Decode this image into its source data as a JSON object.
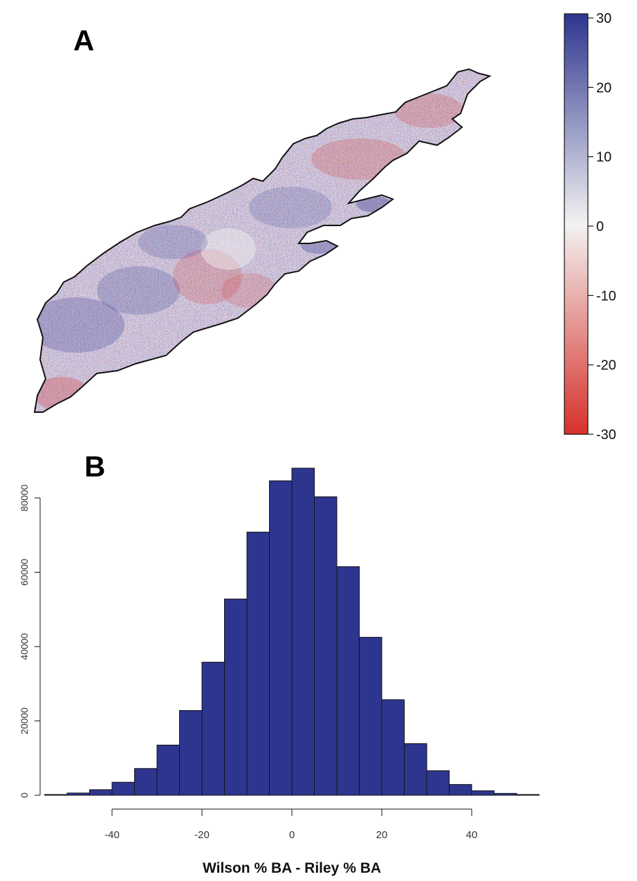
{
  "panels": {
    "a_label": "A",
    "b_label": "B"
  },
  "chart_data": [
    {
      "type": "heatmap",
      "panel": "A",
      "title": "",
      "description_values": "spatial map of Wilson % BA minus Riley % BA",
      "colorbar": {
        "min": -30,
        "max": 30,
        "ticks": [
          30,
          20,
          10,
          0,
          -10,
          -20,
          -30
        ],
        "tick_labels": [
          "30",
          "20",
          "10",
          "0",
          "-10",
          "-20",
          "-30"
        ],
        "colors": {
          "high": "#2e358f",
          "mid": "#f2f2f2",
          "low": "#d7302a"
        }
      }
    },
    {
      "type": "bar",
      "panel": "B",
      "title": "",
      "xlabel": "Wilson % BA - Riley % BA",
      "ylabel": "",
      "bin_edges": [
        -55,
        -50,
        -45,
        -40,
        -35,
        -30,
        -25,
        -20,
        -15,
        -10,
        -5,
        0,
        5,
        10,
        15,
        20,
        25,
        30,
        35,
        40,
        45,
        50,
        55
      ],
      "values": [
        200,
        600,
        1500,
        3500,
        7200,
        13500,
        22800,
        35800,
        52800,
        70800,
        84600,
        88000,
        80300,
        61500,
        42500,
        25700,
        13900,
        6600,
        2900,
        1200,
        500,
        200
      ],
      "xlim": [
        -55,
        55
      ],
      "ylim": [
        0,
        90000
      ],
      "xticks": [
        -40,
        -20,
        0,
        20,
        40
      ],
      "xtick_labels": [
        "-40",
        "-20",
        "0",
        "20",
        "40"
      ],
      "yticks": [
        0,
        20000,
        40000,
        60000,
        80000
      ],
      "ytick_labels": [
        "0",
        "20000",
        "40000",
        "60000",
        "80000"
      ],
      "bar_color": "#2e358f",
      "grid": false
    }
  ]
}
